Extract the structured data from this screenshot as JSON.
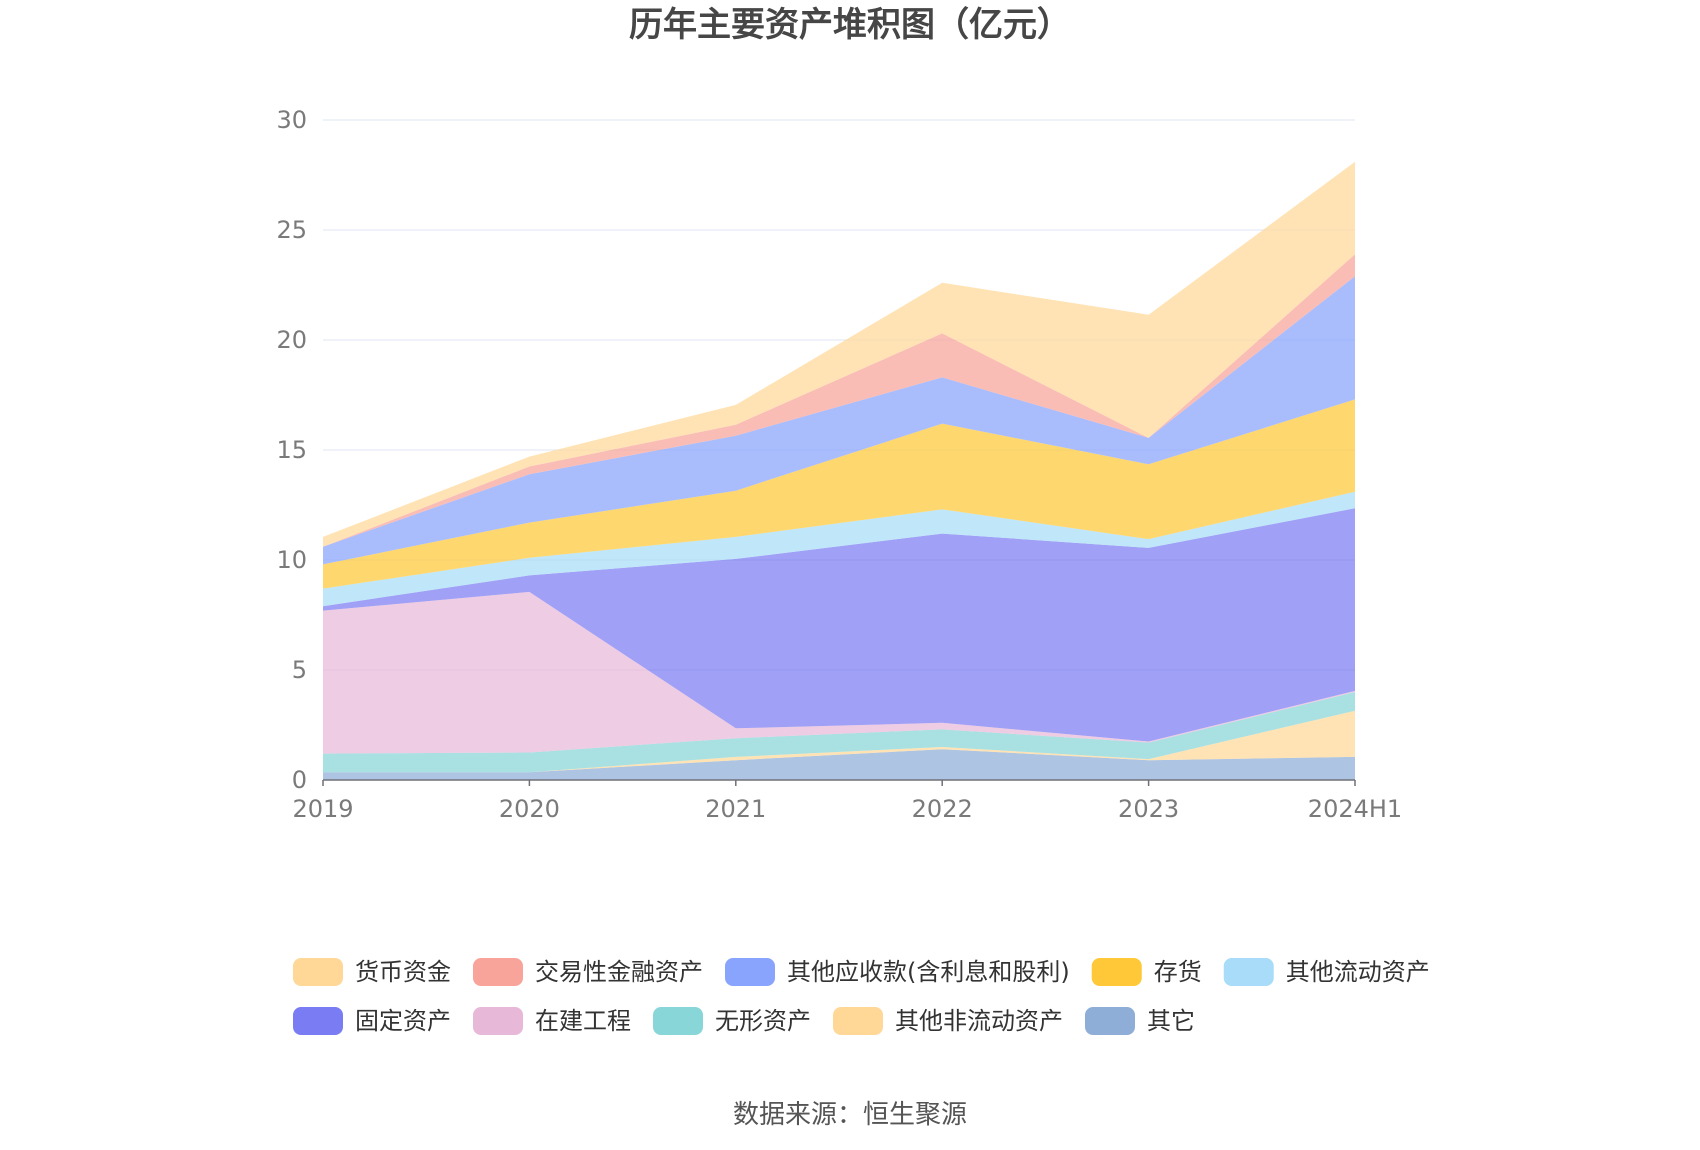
{
  "source": "数据来源：恒生聚源",
  "chart_data": {
    "type": "area",
    "title": "历年主要资产堆积图（亿元）",
    "stacked": true,
    "x": [
      "2019",
      "2020",
      "2021",
      "2022",
      "2023",
      "2024H1"
    ],
    "ylim": [
      0,
      30
    ],
    "yticks": [
      0,
      5,
      10,
      15,
      20,
      25,
      30
    ],
    "grid": true,
    "legend_position": "bottom",
    "series": [
      {
        "name": "其它",
        "color": "#8eaed8",
        "values": [
          0.35,
          0.35,
          0.9,
          1.4,
          0.9,
          1.05
        ]
      },
      {
        "name": "其他非流动资产",
        "color": "#ffd898",
        "values": [
          0.0,
          0.0,
          0.15,
          0.1,
          0.05,
          2.1
        ]
      },
      {
        "name": "无形资产",
        "color": "#88d6d8",
        "values": [
          0.85,
          0.9,
          0.85,
          0.8,
          0.75,
          0.85
        ]
      },
      {
        "name": "在建工程",
        "color": "#e8b8d8",
        "values": [
          6.5,
          7.3,
          0.45,
          0.3,
          0.05,
          0.05
        ]
      },
      {
        "name": "固定资产",
        "color": "#7a7cf3",
        "values": [
          0.2,
          0.75,
          7.7,
          8.6,
          8.8,
          8.3
        ]
      },
      {
        "name": "其他流动资产",
        "color": "#a8dcf8",
        "values": [
          0.8,
          0.8,
          1.0,
          1.1,
          0.4,
          0.75
        ]
      },
      {
        "name": "存货",
        "color": "#ffc838",
        "values": [
          1.1,
          1.6,
          2.1,
          3.9,
          3.4,
          4.2
        ]
      },
      {
        "name": "其他应收款(含利息和股利)",
        "color": "#88a4fc",
        "values": [
          0.8,
          2.2,
          2.5,
          2.1,
          1.2,
          5.6
        ]
      },
      {
        "name": "交易性金融资产",
        "color": "#f8a49a",
        "values": [
          0.0,
          0.35,
          0.5,
          2.0,
          0.0,
          1.0
        ]
      },
      {
        "name": "货币资金",
        "color": "#ffd898",
        "values": [
          0.45,
          0.45,
          0.9,
          2.3,
          5.6,
          4.2
        ]
      }
    ],
    "legend_order": [
      "货币资金",
      "交易性金融资产",
      "其他应收款(含利息和股利)",
      "存货",
      "其他流动资产",
      "固定资产",
      "在建工程",
      "无形资产",
      "其他非流动资产",
      "其它"
    ]
  }
}
